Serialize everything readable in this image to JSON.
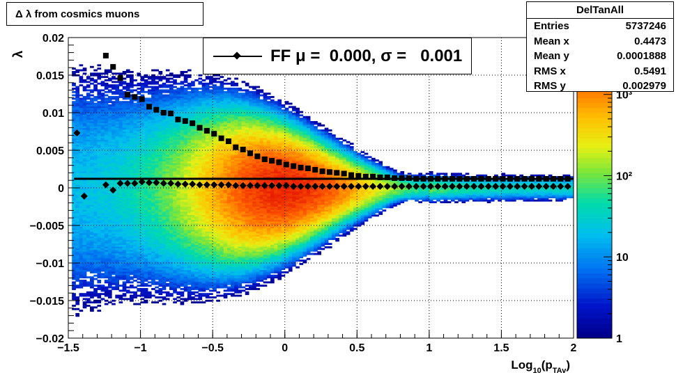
{
  "title": "Δ λ from cosmics muons",
  "legend": {
    "label": "FF μ =  0.000, σ =   0.001"
  },
  "stats": {
    "name": "DelTanAll",
    "rows": [
      {
        "key": "Entries",
        "value": "5737246"
      },
      {
        "key": "Mean x",
        "value": "0.4473"
      },
      {
        "key": "Mean y",
        "value": "0.0001888"
      },
      {
        "key": "RMS x",
        "value": "0.5491"
      },
      {
        "key": "RMS y",
        "value": "0.002979"
      }
    ]
  },
  "colorbar": {
    "scale": "log",
    "tick_labels": [
      "1",
      "10",
      "10²",
      "10³"
    ]
  },
  "chart_data": {
    "type": "heatmap",
    "title": "Δ λ from cosmics muons",
    "xlabel": "Log₁₀(p_TAv)",
    "xlabel_main": "Log",
    "xlabel_sub": "10",
    "xlabel_paren": "(p",
    "xlabel_sub2": "TAv",
    "xlabel_close": ")",
    "ylabel": "λ",
    "xlim": [
      -1.5,
      2
    ],
    "ylim": [
      -0.02,
      0.02
    ],
    "grid": true,
    "z_scale": "log",
    "x_ticks": [
      -1.5,
      -1,
      -0.5,
      0,
      0.5,
      1,
      1.5,
      2
    ],
    "x_tick_labels": [
      "−1.5",
      "−1",
      "−0.5",
      "0",
      "0.5",
      "1",
      "1.5",
      "2"
    ],
    "y_ticks": [
      -0.02,
      -0.015,
      -0.01,
      -0.005,
      0,
      0.005,
      0.01,
      0.015,
      0.02
    ],
    "y_tick_labels": [
      "−0.02",
      "−0.015",
      "−0.01",
      "−0.005",
      "0",
      "0.005",
      "0.01",
      "0.015",
      "0.02"
    ],
    "series": [
      {
        "marker": "square",
        "x": [
          -1.24,
          -1.19,
          -1.14,
          -1.09,
          -1.04,
          -0.99,
          -0.94,
          -0.89,
          -0.84,
          -0.79,
          -0.74,
          -0.69,
          -0.64,
          -0.59,
          -0.54,
          -0.49,
          -0.44,
          -0.39,
          -0.34,
          -0.29,
          -0.24,
          -0.19,
          -0.14,
          -0.09,
          -0.04,
          0.01,
          0.06,
          0.11,
          0.16,
          0.21,
          0.26,
          0.31,
          0.36,
          0.41,
          0.46,
          0.51,
          0.56,
          0.61,
          0.66,
          0.71,
          0.76,
          0.81,
          0.86,
          0.91,
          0.96,
          1.01,
          1.06,
          1.11,
          1.16,
          1.21,
          1.26,
          1.31,
          1.36,
          1.41,
          1.46,
          1.51,
          1.56,
          1.61,
          1.66,
          1.71,
          1.76,
          1.81,
          1.86,
          1.91,
          1.96
        ],
        "y": [
          0.0176,
          0.0161,
          0.0146,
          0.0124,
          0.0121,
          0.0118,
          0.0108,
          0.0104,
          0.01,
          0.0099,
          0.0091,
          0.0089,
          0.0086,
          0.008,
          0.0076,
          0.0072,
          0.0066,
          0.0062,
          0.0054,
          0.0051,
          0.0046,
          0.0042,
          0.0038,
          0.0036,
          0.0034,
          0.0031,
          0.0029,
          0.0027,
          0.0026,
          0.0024,
          0.0022,
          0.0021,
          0.002,
          0.0019,
          0.0017,
          0.0016,
          0.0015,
          0.0015,
          0.0014,
          0.0014,
          0.0013,
          0.0013,
          0.0013,
          0.0012,
          0.0012,
          0.0012,
          0.0012,
          0.0012,
          0.0012,
          0.0012,
          0.0012,
          0.0012,
          0.0012,
          0.0012,
          0.0012,
          0.0012,
          0.0012,
          0.0012,
          0.0012,
          0.0012,
          0.0012,
          0.0012,
          0.0012,
          0.0012,
          0.0012
        ]
      },
      {
        "marker": "diamond",
        "x": [
          -1.44,
          -1.39,
          -1.24,
          -1.19,
          -1.14,
          -1.09,
          -1.04,
          -0.99,
          -0.94,
          -0.89,
          -0.84,
          -0.79,
          -0.74,
          -0.69,
          -0.64,
          -0.59,
          -0.54,
          -0.49,
          -0.44,
          -0.39,
          -0.34,
          -0.29,
          -0.24,
          -0.19,
          -0.14,
          -0.09,
          -0.04,
          0.01,
          0.06,
          0.11,
          0.16,
          0.21,
          0.26,
          0.31,
          0.36,
          0.41,
          0.46,
          0.51,
          0.56,
          0.61,
          0.66,
          0.71,
          0.76,
          0.81,
          0.86,
          0.91,
          0.96,
          1.01,
          1.06,
          1.11,
          1.16,
          1.21,
          1.26,
          1.31,
          1.36,
          1.41,
          1.46,
          1.51,
          1.56,
          1.61,
          1.66,
          1.71,
          1.76,
          1.81,
          1.86,
          1.91,
          1.96
        ],
        "y": [
          0.0073,
          -0.0011,
          0.0004,
          -0.0003,
          0.0006,
          0.0006,
          0.0006,
          0.0008,
          0.0007,
          0.0007,
          0.0006,
          0.0006,
          0.0005,
          0.0005,
          0.0005,
          0.0004,
          0.0004,
          0.0004,
          0.0004,
          0.0004,
          0.0003,
          0.0003,
          0.0003,
          0.0003,
          0.0003,
          0.0003,
          0.0003,
          0.0003,
          0.0002,
          0.0002,
          0.0002,
          0.0002,
          0.0002,
          0.0002,
          0.0002,
          0.0002,
          0.0002,
          0.0002,
          0.0002,
          0.0002,
          0.0002,
          0.0002,
          0.0002,
          0.0002,
          0.0002,
          0.0002,
          0.0002,
          0.0002,
          0.0002,
          0.0002,
          0.0002,
          0.0002,
          0.0002,
          0.0002,
          0.0002,
          0.0002,
          0.0002,
          0.0002,
          0.0002,
          0.0002,
          0.0002,
          0.0002,
          0.0002,
          0.0002,
          0.0002,
          0.0002,
          0.0002
        ]
      }
    ]
  }
}
